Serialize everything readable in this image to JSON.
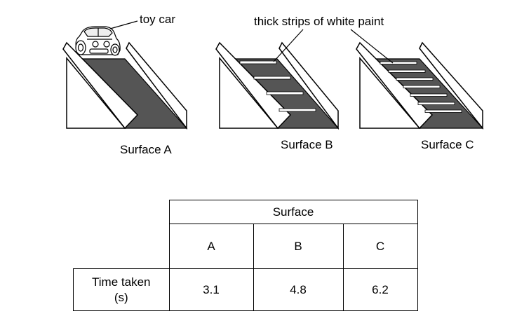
{
  "labels": {
    "toy_car": "toy car",
    "strips": "thick strips of white paint"
  },
  "ramps": [
    {
      "name": "Surface A",
      "strips": 0
    },
    {
      "name": "Surface B",
      "strips": 4
    },
    {
      "name": "Surface C",
      "strips": 7
    }
  ],
  "table": {
    "header": "Surface",
    "row_label": "Time taken\n(s)",
    "columns": [
      "A",
      "B",
      "C"
    ],
    "values": [
      "3.1",
      "4.8",
      "6.2"
    ]
  },
  "colors": {
    "surface": "#555555",
    "strip": "#ffffff",
    "outline": "#000000"
  }
}
